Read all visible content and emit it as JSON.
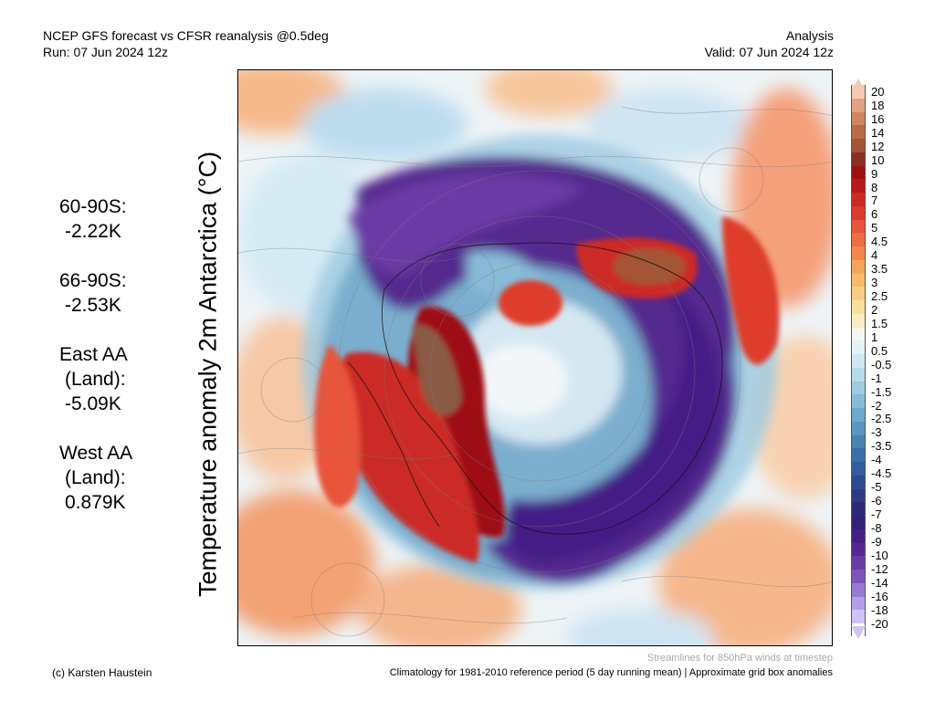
{
  "header": {
    "title_line1": "NCEP GFS forecast vs CFSR reanalysis @0.5deg",
    "title_line2": "Run: 07 Jun 2024 12z",
    "right_line1": "Analysis",
    "right_line2": "Valid: 07 Jun 2024 12z"
  },
  "vertical_title": "Temperature anomaly 2m Antarctica (°C)",
  "stats": [
    {
      "lines": [
        "60-90S:"
      ],
      "value": "-2.22K"
    },
    {
      "lines": [
        "66-90S:"
      ],
      "value": "-2.53K"
    },
    {
      "lines": [
        "East AA",
        "(Land):"
      ],
      "value": "-5.09K"
    },
    {
      "lines": [
        "West AA",
        "(Land):"
      ],
      "value": "0.879K"
    }
  ],
  "colorbar": {
    "labels": [
      "20",
      "18",
      "16",
      "14",
      "12",
      "10",
      "9",
      "8",
      "7",
      "6",
      "5",
      "4.5",
      "4",
      "3.5",
      "3",
      "2.5",
      "2",
      "1.5",
      "1",
      "0.5",
      "-0.5",
      "-1",
      "-1.5",
      "-2",
      "-2.5",
      "-3",
      "-3.5",
      "-4",
      "-4.5",
      "-5",
      "-6",
      "-7",
      "-8",
      "-9",
      "-10",
      "-12",
      "-14",
      "-16",
      "-18",
      "-20"
    ],
    "colors": [
      "#f4c9b4",
      "#e2a183",
      "#cf8560",
      "#bb6a47",
      "#a45436",
      "#8b2f22",
      "#9e0f14",
      "#b71a1c",
      "#cc2a25",
      "#dd3c2c",
      "#e8553a",
      "#ef6d45",
      "#f3874f",
      "#f6a35c",
      "#f8b96c",
      "#f9ce83",
      "#fae09e",
      "#fbedc3",
      "#f7f5ef",
      "#e4f1f7",
      "#cfe7f3",
      "#b7dbec",
      "#9ecbe2",
      "#88bbd8",
      "#6fa8cc",
      "#5b96c0",
      "#4a82b3",
      "#3d6ea8",
      "#325e9d",
      "#2c4a90",
      "#2f3a87",
      "#2d2a7a",
      "#35207a",
      "#451f85",
      "#55298f",
      "#6a3ba4",
      "#7e53bd",
      "#957bd6",
      "#b39fe8",
      "#cfc3f5"
    ]
  },
  "footer": {
    "left": "(c) Karsten Haustein",
    "streamlines": "Streamlines for 850hPa winds at timestep",
    "right": "Climatology for 1981-2010 reference period (5 day running mean) | Approximate grid box anomalies"
  }
}
